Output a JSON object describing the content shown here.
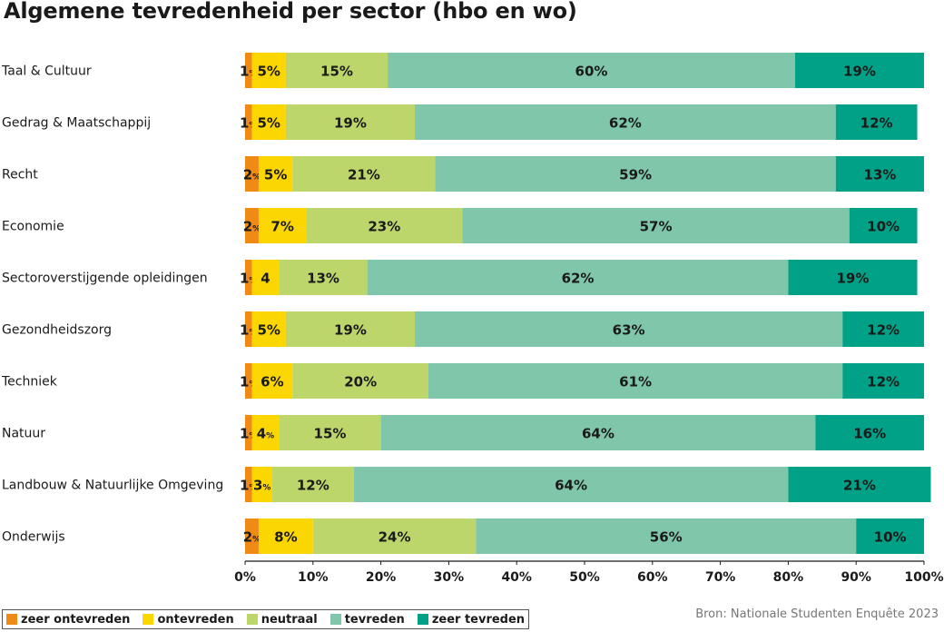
{
  "chart_data": {
    "type": "bar",
    "orientation": "horizontal",
    "stacked": true,
    "title": "Algemene tevredenheid per sector (hbo en wo)",
    "source": "Bron: Nationale Studenten Enquête 2023",
    "categories": [
      "Taal & Cultuur",
      "Gedrag & Maatschappij",
      "Recht",
      "Economie",
      "Sectoroverstijgende opleidingen",
      "Gezondheidszorg",
      "Techniek",
      "Natuur",
      "Landbouw & Natuurlijke Omgeving",
      "Onderwijs"
    ],
    "series": [
      {
        "name": "zeer ontevreden",
        "color": "#ef8a17",
        "values": [
          1,
          1,
          2,
          2,
          1,
          1,
          1,
          1,
          1,
          2
        ],
        "labels": [
          "1%",
          "1%",
          "2%",
          "2%",
          "1%",
          "1%",
          "1%",
          "1%",
          "1%",
          "2%"
        ]
      },
      {
        "name": "ontevreden",
        "color": "#fcd600",
        "values": [
          5,
          5,
          5,
          7,
          4,
          5,
          6,
          4,
          3,
          8
        ],
        "labels": [
          "5%",
          "5%",
          "5%",
          "7%",
          "4",
          "5%",
          "6%",
          "4%",
          "3%",
          "8%"
        ]
      },
      {
        "name": "neutraal",
        "color": "#bdd66b",
        "values": [
          15,
          19,
          21,
          23,
          13,
          19,
          20,
          15,
          12,
          24
        ],
        "labels": [
          "15%",
          "19%",
          "21%",
          "23%",
          "13%",
          "19%",
          "20%",
          "15%",
          "12%",
          "24%"
        ]
      },
      {
        "name": "tevreden",
        "color": "#80c6aa",
        "values": [
          60,
          62,
          59,
          57,
          62,
          63,
          61,
          64,
          64,
          56
        ],
        "labels": [
          "60%",
          "62%",
          "59%",
          "57%",
          "62%",
          "63%",
          "61%",
          "64%",
          "64%",
          "56%"
        ]
      },
      {
        "name": "zeer tevreden",
        "color": "#00a186",
        "values": [
          19,
          12,
          13,
          10,
          19,
          12,
          12,
          16,
          21,
          10
        ],
        "labels": [
          "19%",
          "12%",
          "13%",
          "10%",
          "19%",
          "12%",
          "12%",
          "16%",
          "21%",
          "10%"
        ]
      }
    ],
    "xlim": [
      0,
      100
    ],
    "xticks": [
      "0%",
      "10%",
      "20%",
      "30%",
      "40%",
      "50%",
      "60%",
      "70%",
      "80%",
      "90%",
      "100%"
    ],
    "grid": false,
    "legend_position": "bottom-left"
  }
}
